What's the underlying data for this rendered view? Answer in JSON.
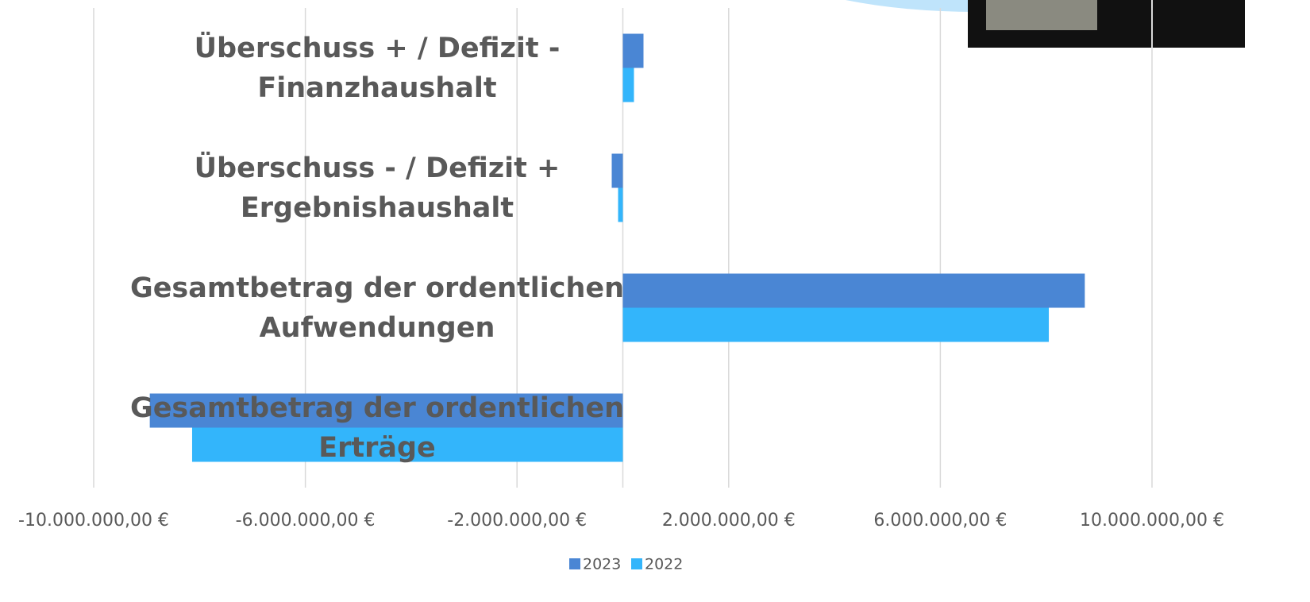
{
  "chart_data": {
    "type": "hbar",
    "categories": [
      "Gesamtbetrag der ordentlichen Erträge",
      "Gesamtbetrag der ordentlichen Aufwendungen",
      "Überschuss - / Defizit + Ergebnishaushalt",
      "Überschuss + / Defizit - Finanzhaushalt"
    ],
    "series": [
      {
        "name": "2023",
        "color": "#4a86d4",
        "values": [
          -8940000,
          8730000,
          -210000,
          390000
        ]
      },
      {
        "name": "2022",
        "color": "#33b5fb",
        "values": [
          -8140000,
          8050000,
          -90000,
          210000
        ]
      }
    ],
    "xlim": [
      -10000000,
      10000000
    ],
    "xticks": [
      {
        "value": -10000000,
        "label": "-10.000.000,00 €"
      },
      {
        "value": -6000000,
        "label": "-6.000.000,00 €"
      },
      {
        "value": -2000000,
        "label": "-2.000.000,00 €"
      },
      {
        "value": 2000000,
        "label": "2.000.000,00 €"
      },
      {
        "value": 6000000,
        "label": "6.000.000,00 €"
      },
      {
        "value": 10000000,
        "label": "10.000.000,00 €"
      }
    ],
    "grid": true
  }
}
